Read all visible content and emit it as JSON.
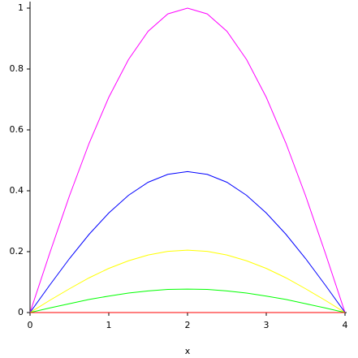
{
  "chart_data": {
    "type": "line",
    "x_label": "x",
    "x": [
      0,
      0.25,
      0.5,
      0.75,
      1,
      1.25,
      1.5,
      1.75,
      2,
      2.25,
      2.5,
      2.75,
      3,
      3.25,
      3.5,
      3.75,
      4
    ],
    "series": [
      {
        "color": "#ff00ff",
        "values": [
          0,
          0.195,
          0.383,
          0.556,
          0.707,
          0.831,
          0.924,
          0.981,
          1,
          0.981,
          0.924,
          0.831,
          0.707,
          0.556,
          0.383,
          0.195,
          0
        ]
      },
      {
        "color": "#0000ff",
        "values": [
          0,
          0.09,
          0.177,
          0.257,
          0.327,
          0.385,
          0.428,
          0.454,
          0.463,
          0.454,
          0.428,
          0.385,
          0.327,
          0.257,
          0.177,
          0.09,
          0
        ]
      },
      {
        "color": "#ffff00",
        "values": [
          0,
          0.04,
          0.078,
          0.114,
          0.145,
          0.17,
          0.189,
          0.201,
          0.205,
          0.201,
          0.189,
          0.17,
          0.145,
          0.114,
          0.078,
          0.04,
          0
        ]
      },
      {
        "color": "#00ff00",
        "values": [
          0,
          0.015,
          0.029,
          0.043,
          0.054,
          0.064,
          0.071,
          0.076,
          0.077,
          0.076,
          0.071,
          0.064,
          0.054,
          0.043,
          0.029,
          0.015,
          0
        ]
      },
      {
        "color": "#ff0000",
        "values": [
          0,
          0,
          0,
          0,
          0,
          0,
          0,
          0,
          0,
          0,
          0,
          0,
          0,
          0,
          0,
          0,
          0
        ]
      }
    ],
    "xlim": [
      0,
      4
    ],
    "xticks": [
      0,
      1,
      2,
      3,
      4
    ],
    "ylim": [
      0,
      1
    ],
    "yticks": [
      0,
      0.2,
      0.4,
      0.6,
      0.8,
      1
    ],
    "grid": false
  }
}
